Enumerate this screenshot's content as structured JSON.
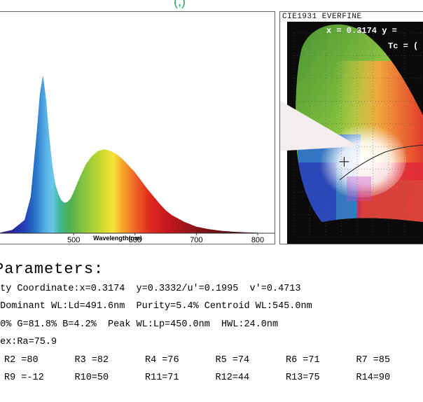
{
  "top_caption": "(,)",
  "chart_data": [
    {
      "type": "area",
      "title": "",
      "xlabel": "Wavelength(nm)",
      "ylabel": "",
      "xlim": [
        380,
        800
      ],
      "ylim": [
        0,
        1
      ],
      "xticks": [
        "500",
        "600",
        "700",
        "800"
      ],
      "grid": false,
      "series": [
        {
          "x": [
            380,
            400,
            420,
            430,
            440,
            445,
            450,
            455,
            460,
            465,
            470,
            475,
            480,
            485,
            490,
            495,
            500,
            510,
            520,
            530,
            540,
            550,
            560,
            570,
            580,
            590,
            600,
            610,
            620,
            630,
            640,
            650,
            660,
            680,
            700,
            720,
            740,
            760,
            780,
            800
          ],
          "values": [
            0.003,
            0.02,
            0.08,
            0.22,
            0.62,
            0.85,
            0.96,
            0.82,
            0.6,
            0.42,
            0.3,
            0.24,
            0.2,
            0.185,
            0.19,
            0.21,
            0.25,
            0.34,
            0.42,
            0.47,
            0.5,
            0.51,
            0.5,
            0.48,
            0.45,
            0.41,
            0.37,
            0.32,
            0.27,
            0.225,
            0.18,
            0.14,
            0.11,
            0.07,
            0.04,
            0.025,
            0.015,
            0.009,
            0.005,
            0.003
          ]
        }
      ]
    },
    {
      "type": "scatter",
      "title": "CIE1931 EVERFINE",
      "xlabel": "",
      "ylabel": "",
      "xlim": [
        0,
        0.8
      ],
      "ylim": [
        0,
        0.9
      ],
      "grid": true,
      "series": [
        {
          "x": [
            0.3174
          ],
          "values": [
            0.3332
          ]
        }
      ]
    }
  ],
  "cie": {
    "readout_x": "x = 0.3174 y =",
    "readout_tc": "Tc = (",
    "arrow_color": "#f4eded"
  },
  "params": {
    "heading": "Parameters:",
    "line1": "ity Coordinate:x=0.3174  y=0.3332/u'=0.1995  v'=0.4713",
    "line2": " Dominant WL:Ld=491.6nm  Purity=5.4% Centroid WL:545.0nm",
    "line3": ".0% G=81.8% B=4.2%  Peak WL:Lp=450.0nm  HWL:24.0nm",
    "line4": "dex:Ra=75.9",
    "r_row1": [
      "R2 =80",
      "R3 =82",
      "R4 =76",
      "R5 =74",
      "R6 =71",
      "R7 =85"
    ],
    "r_row2": [
      "R9 =-12",
      "R10=50",
      "R11=71",
      "R12=44",
      "R13=75",
      "R14=90"
    ]
  }
}
